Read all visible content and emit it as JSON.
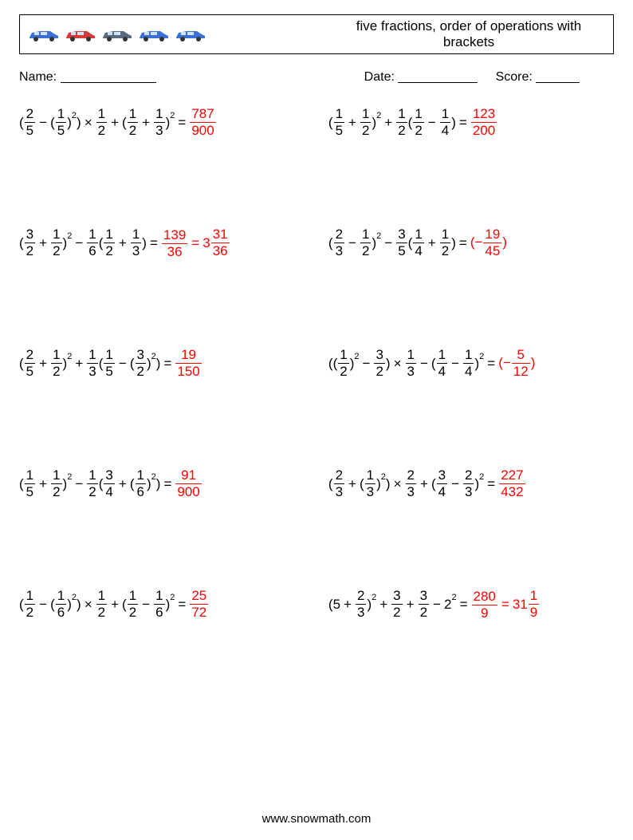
{
  "header": {
    "title": "five fractions, order of operations with brackets",
    "car_colors": [
      "#3b6fd6",
      "#d43a3a",
      "#5a6a7d",
      "#3b6fd6",
      "#3b6fd6"
    ]
  },
  "info": {
    "name_label": "Name:",
    "date_label": "Date:",
    "score_label": "Score:",
    "name_line_w": 120,
    "date_line_w": 100,
    "score_line_w": 55
  },
  "problems": [
    {
      "left": {
        "expr": [
          {
            "t": "txt",
            "v": "("
          },
          {
            "t": "frac",
            "n": "2",
            "d": "5"
          },
          {
            "t": "op",
            "v": "−"
          },
          {
            "t": "txt",
            "v": "("
          },
          {
            "t": "frac",
            "n": "1",
            "d": "5"
          },
          {
            "t": "txt",
            "v": ")"
          },
          {
            "t": "sup",
            "v": "2"
          },
          {
            "t": "txt",
            "v": ")"
          },
          {
            "t": "op",
            "v": "×"
          },
          {
            "t": "frac",
            "n": "1",
            "d": "2"
          },
          {
            "t": "op",
            "v": "+"
          },
          {
            "t": "txt",
            "v": "("
          },
          {
            "t": "frac",
            "n": "1",
            "d": "2"
          },
          {
            "t": "op",
            "v": "+"
          },
          {
            "t": "frac",
            "n": "1",
            "d": "3"
          },
          {
            "t": "txt",
            "v": ")"
          },
          {
            "t": "sup",
            "v": "2"
          }
        ],
        "ans": [
          {
            "t": "frac",
            "n": "787",
            "d": "900"
          }
        ]
      },
      "right": {
        "expr": [
          {
            "t": "txt",
            "v": "("
          },
          {
            "t": "frac",
            "n": "1",
            "d": "5"
          },
          {
            "t": "op",
            "v": "+"
          },
          {
            "t": "frac",
            "n": "1",
            "d": "2"
          },
          {
            "t": "txt",
            "v": ")"
          },
          {
            "t": "sup",
            "v": "2"
          },
          {
            "t": "op",
            "v": "+"
          },
          {
            "t": "frac",
            "n": "1",
            "d": "2"
          },
          {
            "t": "txt",
            "v": "("
          },
          {
            "t": "frac",
            "n": "1",
            "d": "2"
          },
          {
            "t": "op",
            "v": "−"
          },
          {
            "t": "frac",
            "n": "1",
            "d": "4"
          },
          {
            "t": "txt",
            "v": ")"
          }
        ],
        "ans": [
          {
            "t": "frac",
            "n": "123",
            "d": "200"
          }
        ]
      }
    },
    {
      "left": {
        "expr": [
          {
            "t": "txt",
            "v": "("
          },
          {
            "t": "frac",
            "n": "3",
            "d": "2"
          },
          {
            "t": "op",
            "v": "+"
          },
          {
            "t": "frac",
            "n": "1",
            "d": "2"
          },
          {
            "t": "txt",
            "v": ")"
          },
          {
            "t": "sup",
            "v": "2"
          },
          {
            "t": "op",
            "v": "−"
          },
          {
            "t": "frac",
            "n": "1",
            "d": "6"
          },
          {
            "t": "txt",
            "v": "("
          },
          {
            "t": "frac",
            "n": "1",
            "d": "2"
          },
          {
            "t": "op",
            "v": "+"
          },
          {
            "t": "frac",
            "n": "1",
            "d": "3"
          },
          {
            "t": "txt",
            "v": ")"
          }
        ],
        "ans": [
          {
            "t": "frac",
            "n": "139",
            "d": "36"
          },
          {
            "t": "eq"
          },
          {
            "t": "mixed",
            "w": "3",
            "n": "31",
            "d": "36"
          }
        ]
      },
      "right": {
        "expr": [
          {
            "t": "txt",
            "v": "("
          },
          {
            "t": "frac",
            "n": "2",
            "d": "3"
          },
          {
            "t": "op",
            "v": "−"
          },
          {
            "t": "frac",
            "n": "1",
            "d": "2"
          },
          {
            "t": "txt",
            "v": ")"
          },
          {
            "t": "sup",
            "v": "2"
          },
          {
            "t": "op",
            "v": "−"
          },
          {
            "t": "frac",
            "n": "3",
            "d": "5"
          },
          {
            "t": "txt",
            "v": "("
          },
          {
            "t": "frac",
            "n": "1",
            "d": "4"
          },
          {
            "t": "op",
            "v": "+"
          },
          {
            "t": "frac",
            "n": "1",
            "d": "2"
          },
          {
            "t": "txt",
            "v": ")"
          }
        ],
        "ans": [
          {
            "t": "txt",
            "v": "(−"
          },
          {
            "t": "frac",
            "n": "19",
            "d": "45"
          },
          {
            "t": "txt",
            "v": ")"
          }
        ]
      }
    },
    {
      "left": {
        "expr": [
          {
            "t": "txt",
            "v": "("
          },
          {
            "t": "frac",
            "n": "2",
            "d": "5"
          },
          {
            "t": "op",
            "v": "+"
          },
          {
            "t": "frac",
            "n": "1",
            "d": "2"
          },
          {
            "t": "txt",
            "v": ")"
          },
          {
            "t": "sup",
            "v": "2"
          },
          {
            "t": "op",
            "v": "+"
          },
          {
            "t": "frac",
            "n": "1",
            "d": "3"
          },
          {
            "t": "txt",
            "v": "("
          },
          {
            "t": "frac",
            "n": "1",
            "d": "5"
          },
          {
            "t": "op",
            "v": "−"
          },
          {
            "t": "txt",
            "v": "("
          },
          {
            "t": "frac",
            "n": "3",
            "d": "2"
          },
          {
            "t": "txt",
            "v": ")"
          },
          {
            "t": "sup",
            "v": "2"
          },
          {
            "t": "txt",
            "v": ")"
          }
        ],
        "ans": [
          {
            "t": "frac",
            "n": "19",
            "d": "150"
          }
        ]
      },
      "right": {
        "expr": [
          {
            "t": "txt",
            "v": "(("
          },
          {
            "t": "frac",
            "n": "1",
            "d": "2"
          },
          {
            "t": "txt",
            "v": ")"
          },
          {
            "t": "sup",
            "v": "2"
          },
          {
            "t": "op",
            "v": "−"
          },
          {
            "t": "frac",
            "n": "3",
            "d": "2"
          },
          {
            "t": "txt",
            "v": ")"
          },
          {
            "t": "op",
            "v": "×"
          },
          {
            "t": "frac",
            "n": "1",
            "d": "3"
          },
          {
            "t": "op",
            "v": "−"
          },
          {
            "t": "txt",
            "v": "("
          },
          {
            "t": "frac",
            "n": "1",
            "d": "4"
          },
          {
            "t": "op",
            "v": "−"
          },
          {
            "t": "frac",
            "n": "1",
            "d": "4"
          },
          {
            "t": "txt",
            "v": ")"
          },
          {
            "t": "sup",
            "v": "2"
          }
        ],
        "ans": [
          {
            "t": "txt",
            "v": "(−"
          },
          {
            "t": "frac",
            "n": "5",
            "d": "12"
          },
          {
            "t": "txt",
            "v": ")"
          }
        ]
      }
    },
    {
      "left": {
        "expr": [
          {
            "t": "txt",
            "v": "("
          },
          {
            "t": "frac",
            "n": "1",
            "d": "5"
          },
          {
            "t": "op",
            "v": "+"
          },
          {
            "t": "frac",
            "n": "1",
            "d": "2"
          },
          {
            "t": "txt",
            "v": ")"
          },
          {
            "t": "sup",
            "v": "2"
          },
          {
            "t": "op",
            "v": "−"
          },
          {
            "t": "frac",
            "n": "1",
            "d": "2"
          },
          {
            "t": "txt",
            "v": "("
          },
          {
            "t": "frac",
            "n": "3",
            "d": "4"
          },
          {
            "t": "op",
            "v": "+"
          },
          {
            "t": "txt",
            "v": "("
          },
          {
            "t": "frac",
            "n": "1",
            "d": "6"
          },
          {
            "t": "txt",
            "v": ")"
          },
          {
            "t": "sup",
            "v": "2"
          },
          {
            "t": "txt",
            "v": ")"
          }
        ],
        "ans": [
          {
            "t": "frac",
            "n": "91",
            "d": "900"
          }
        ]
      },
      "right": {
        "expr": [
          {
            "t": "txt",
            "v": "("
          },
          {
            "t": "frac",
            "n": "2",
            "d": "3"
          },
          {
            "t": "op",
            "v": "+"
          },
          {
            "t": "txt",
            "v": "("
          },
          {
            "t": "frac",
            "n": "1",
            "d": "3"
          },
          {
            "t": "txt",
            "v": ")"
          },
          {
            "t": "sup",
            "v": "2"
          },
          {
            "t": "txt",
            "v": ")"
          },
          {
            "t": "op",
            "v": "×"
          },
          {
            "t": "frac",
            "n": "2",
            "d": "3"
          },
          {
            "t": "op",
            "v": "+"
          },
          {
            "t": "txt",
            "v": "("
          },
          {
            "t": "frac",
            "n": "3",
            "d": "4"
          },
          {
            "t": "op",
            "v": "−"
          },
          {
            "t": "frac",
            "n": "2",
            "d": "3"
          },
          {
            "t": "txt",
            "v": ")"
          },
          {
            "t": "sup",
            "v": "2"
          }
        ],
        "ans": [
          {
            "t": "frac",
            "n": "227",
            "d": "432"
          }
        ]
      }
    },
    {
      "left": {
        "expr": [
          {
            "t": "txt",
            "v": "("
          },
          {
            "t": "frac",
            "n": "1",
            "d": "2"
          },
          {
            "t": "op",
            "v": "−"
          },
          {
            "t": "txt",
            "v": "("
          },
          {
            "t": "frac",
            "n": "1",
            "d": "6"
          },
          {
            "t": "txt",
            "v": ")"
          },
          {
            "t": "sup",
            "v": "2"
          },
          {
            "t": "txt",
            "v": ")"
          },
          {
            "t": "op",
            "v": "×"
          },
          {
            "t": "frac",
            "n": "1",
            "d": "2"
          },
          {
            "t": "op",
            "v": "+"
          },
          {
            "t": "txt",
            "v": "("
          },
          {
            "t": "frac",
            "n": "1",
            "d": "2"
          },
          {
            "t": "op",
            "v": "−"
          },
          {
            "t": "frac",
            "n": "1",
            "d": "6"
          },
          {
            "t": "txt",
            "v": ")"
          },
          {
            "t": "sup",
            "v": "2"
          }
        ],
        "ans": [
          {
            "t": "frac",
            "n": "25",
            "d": "72"
          }
        ]
      },
      "right": {
        "expr": [
          {
            "t": "txt",
            "v": "(5"
          },
          {
            "t": "op",
            "v": "+"
          },
          {
            "t": "frac",
            "n": "2",
            "d": "3"
          },
          {
            "t": "txt",
            "v": ")"
          },
          {
            "t": "sup",
            "v": "2"
          },
          {
            "t": "op",
            "v": "+"
          },
          {
            "t": "frac",
            "n": "3",
            "d": "2"
          },
          {
            "t": "op",
            "v": "+"
          },
          {
            "t": "frac",
            "n": "3",
            "d": "2"
          },
          {
            "t": "op",
            "v": "−"
          },
          {
            "t": "txt",
            "v": "2"
          },
          {
            "t": "sup",
            "v": "2"
          }
        ],
        "ans": [
          {
            "t": "frac",
            "n": "280",
            "d": "9"
          },
          {
            "t": "eq"
          },
          {
            "t": "mixed",
            "w": "31",
            "n": "1",
            "d": "9"
          }
        ]
      }
    }
  ],
  "footer": "www.snowmath.com"
}
